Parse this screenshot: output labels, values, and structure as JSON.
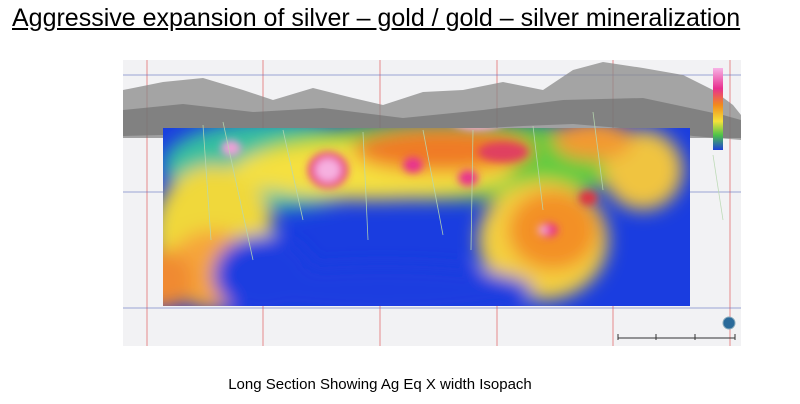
{
  "title": "Aggressive expansion of silver – gold / gold – silver mineralization",
  "caption": "Long Section Showing Ag Eq X width Isopach"
}
